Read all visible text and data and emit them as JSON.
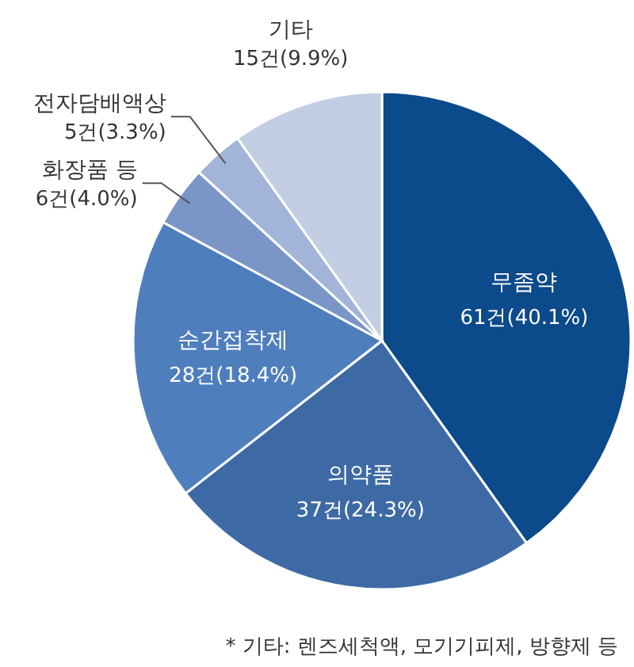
{
  "chart_data": {
    "type": "pie",
    "categories": [
      "무좀약",
      "의약품",
      "순간접착제",
      "화장품 등",
      "전자담배액상",
      "기타"
    ],
    "values": [
      61,
      37,
      28,
      6,
      5,
      15
    ],
    "colors": [
      "#0b4a8b",
      "#3d6aa5",
      "#4f7ebd",
      "#7a96c8",
      "#a2b4d7",
      "#c3cde3"
    ],
    "value_labels": [
      "61건(40.1%)",
      "37건(24.3%)",
      "28건(18.4%)",
      "6건(4.0%)",
      "5건(3.3%)",
      "15건(9.9%)"
    ],
    "annotations": [
      "* 기타: 렌즈세척액, 모기기피제, 방향제 등"
    ]
  }
}
